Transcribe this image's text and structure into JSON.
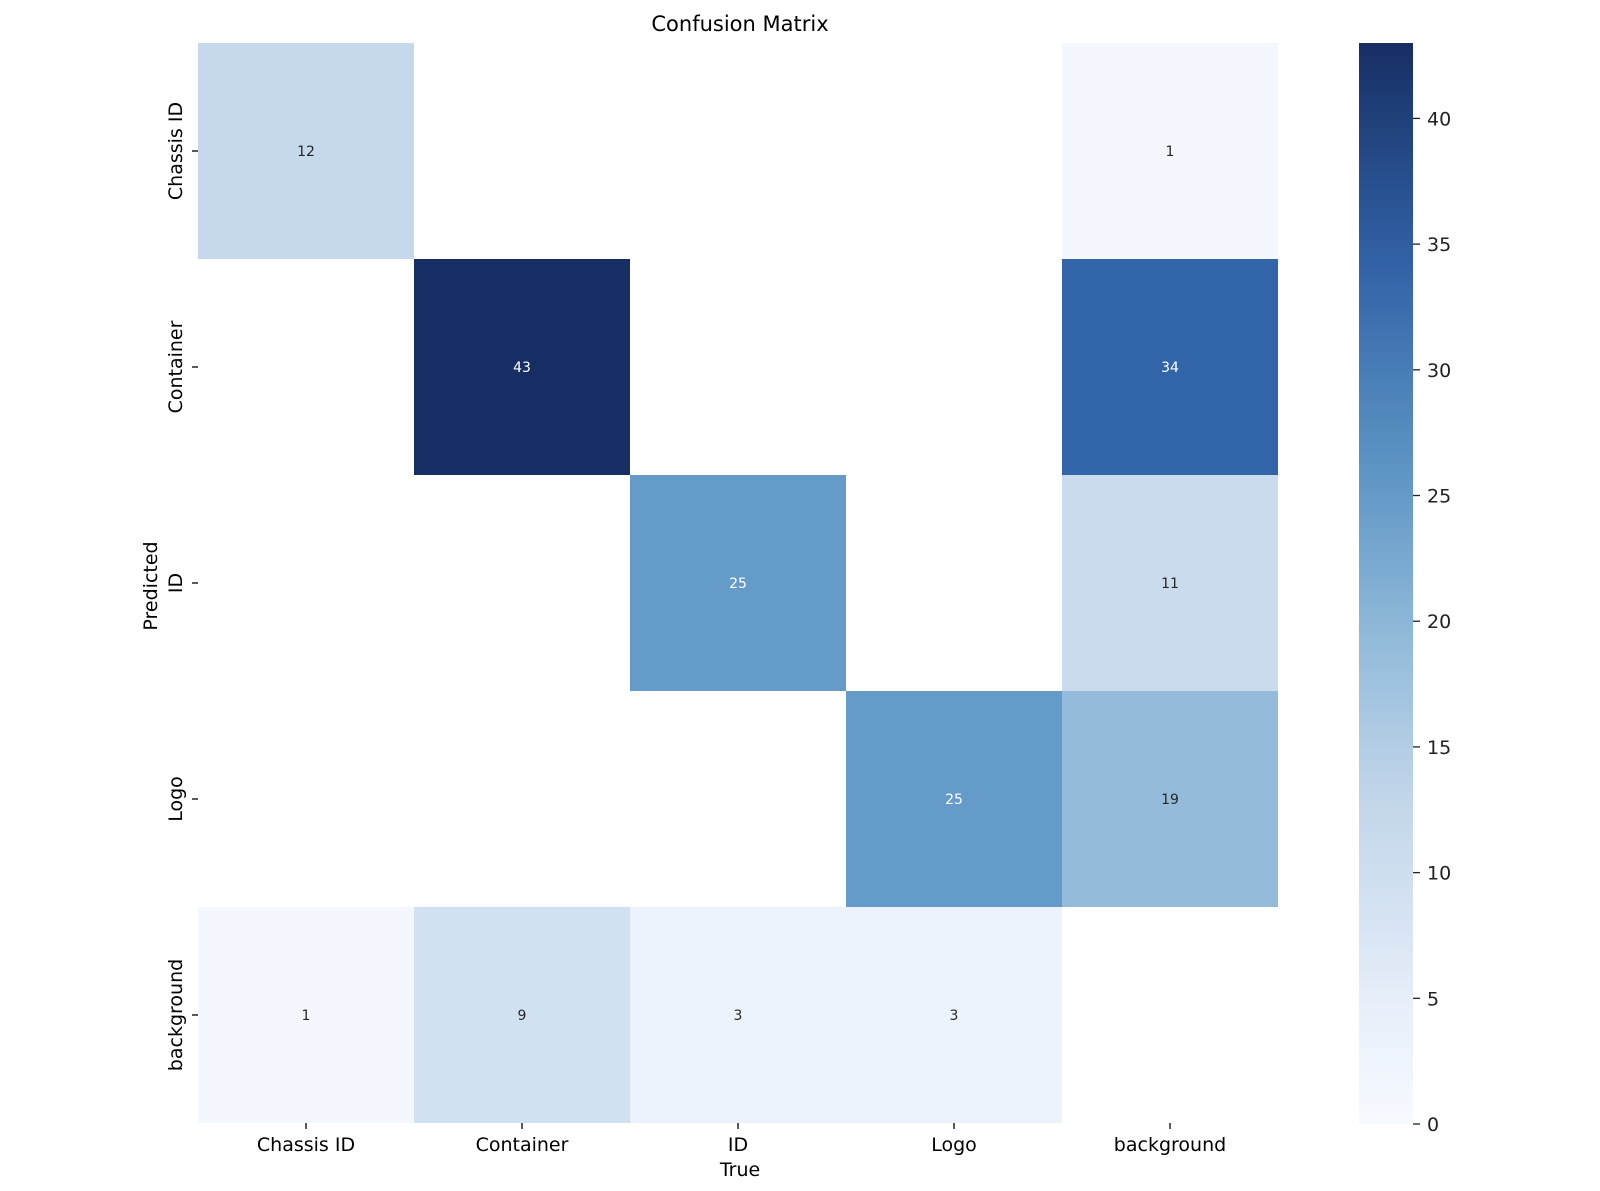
{
  "chart_data": {
    "type": "heatmap",
    "title": "Confusion Matrix",
    "xlabel": "True",
    "ylabel": "Predicted",
    "x_categories": [
      "Chassis ID",
      "Container",
      "ID",
      "Logo",
      "background"
    ],
    "y_categories": [
      "Chassis ID",
      "Container",
      "ID",
      "Logo",
      "background"
    ],
    "values": [
      [
        12,
        null,
        null,
        null,
        1
      ],
      [
        null,
        43,
        null,
        null,
        34
      ],
      [
        null,
        null,
        25,
        null,
        11
      ],
      [
        null,
        null,
        null,
        25,
        19
      ],
      [
        1,
        9,
        3,
        3,
        null
      ]
    ],
    "colormap": "Blues",
    "vmin": 0,
    "vmax": 43,
    "colorbar_ticks": [
      0,
      5,
      10,
      15,
      20,
      25,
      30,
      35,
      40
    ],
    "colorbar_tick_labels": [
      "0",
      "5",
      "10",
      "15",
      "20",
      "25",
      "30",
      "35",
      "40"
    ],
    "annotation_colors": {
      "dark": "#262626",
      "light": "#ffffff"
    }
  }
}
